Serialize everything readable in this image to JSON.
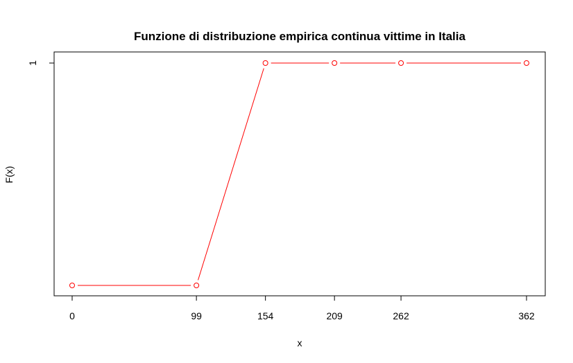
{
  "chart_data": {
    "type": "line",
    "title": "Funzione di distribuzione empirica continua vittime in Italia",
    "xlabel": "x",
    "ylabel": "F(x)",
    "x": [
      0,
      99,
      154,
      209,
      262,
      362
    ],
    "series": [
      {
        "values": [
          0,
          0,
          1,
          1,
          1,
          1
        ],
        "color": "#ff0000"
      }
    ],
    "x_ticks": [
      "0",
      "99",
      "154",
      "209",
      "262",
      "362"
    ],
    "y_ticks": [
      "1"
    ],
    "xlim": [
      0,
      362
    ],
    "ylim": [
      0,
      1
    ],
    "grid": false,
    "point_marker": "open-circle",
    "line_color": "#ff0000"
  }
}
